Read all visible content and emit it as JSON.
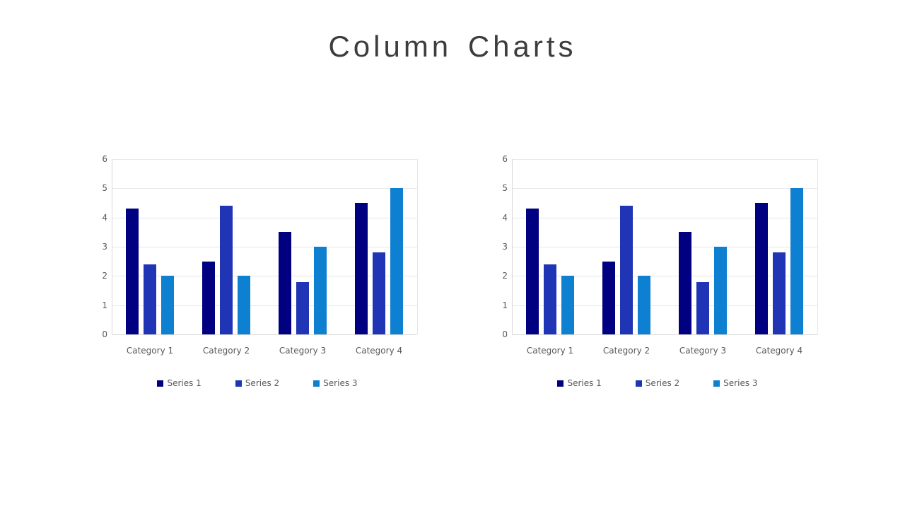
{
  "page": {
    "title": "Column Charts",
    "background": "#ffffff"
  },
  "colors": {
    "title_text": "#3d3d3d",
    "axis_text": "#595959",
    "gridline": "#e7e7e7",
    "axis_line": "#d9d9d9",
    "series1": "#000080",
    "series2": "#1f35b5",
    "series3": "#0e80d2"
  },
  "chart_data": [
    {
      "type": "bar",
      "title": "",
      "categories": [
        "Category 1",
        "Category 2",
        "Category 3",
        "Category 4"
      ],
      "series": [
        {
          "name": "Series 1",
          "color": "#000080",
          "values": [
            4.3,
            2.5,
            3.5,
            4.5
          ]
        },
        {
          "name": "Series 2",
          "color": "#1f35b5",
          "values": [
            2.4,
            4.4,
            1.8,
            2.8
          ]
        },
        {
          "name": "Series 3",
          "color": "#0e80d2",
          "values": [
            2.0,
            2.0,
            3.0,
            5.0
          ]
        }
      ],
      "ylim": [
        0,
        6
      ],
      "yticks": [
        0,
        1,
        2,
        3,
        4,
        5,
        6
      ],
      "grid": "horizontal",
      "legend_position": "bottom"
    },
    {
      "type": "bar",
      "title": "",
      "categories": [
        "Category 1",
        "Category 2",
        "Category 3",
        "Category 4"
      ],
      "series": [
        {
          "name": "Series 1",
          "color": "#000080",
          "values": [
            4.3,
            2.5,
            3.5,
            4.5
          ]
        },
        {
          "name": "Series 2",
          "color": "#1f35b5",
          "values": [
            2.4,
            4.4,
            1.8,
            2.8
          ]
        },
        {
          "name": "Series 3",
          "color": "#0e80d2",
          "values": [
            2.0,
            2.0,
            3.0,
            5.0
          ]
        }
      ],
      "ylim": [
        0,
        6
      ],
      "yticks": [
        0,
        1,
        2,
        3,
        4,
        5,
        6
      ],
      "grid": "horizontal",
      "legend_position": "bottom"
    }
  ]
}
